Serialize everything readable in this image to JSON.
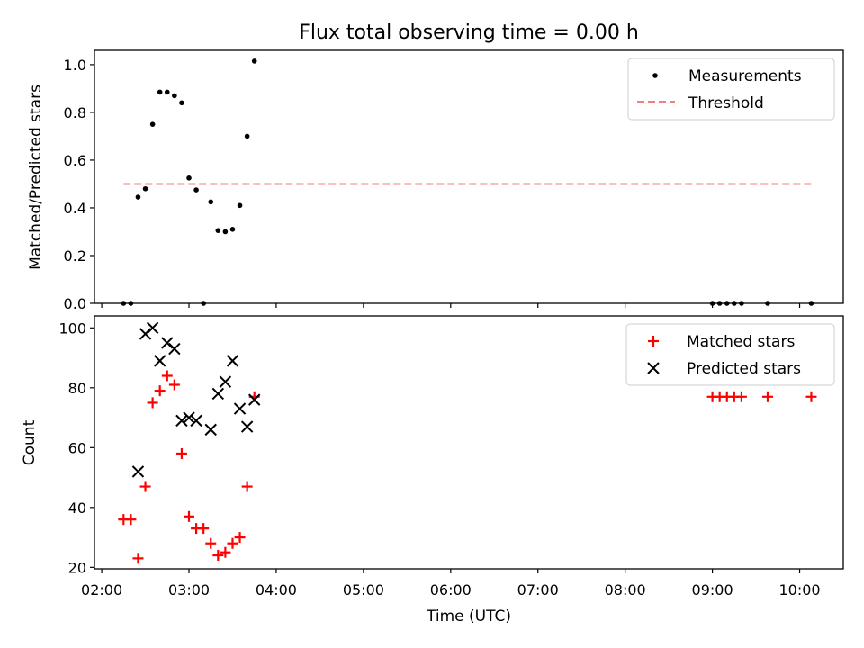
{
  "chart_data": [
    {
      "type": "scatter",
      "title": "Flux total observing time = 0.00 h",
      "xlabel": "",
      "ylabel": "Matched/Predicted stars",
      "ylim": [
        0,
        1.06
      ],
      "yticks": [
        "0.0",
        "0.2",
        "0.4",
        "0.6",
        "0.8",
        "1.0"
      ],
      "xlim": [
        "01:55",
        "10:30"
      ],
      "legend": "top-right",
      "series": [
        {
          "name": "Measurements",
          "marker": "dot",
          "color": "#000000",
          "points": [
            [
              "02:15",
              0.0
            ],
            [
              "02:20",
              0.0
            ],
            [
              "02:25",
              0.445
            ],
            [
              "02:30",
              0.48
            ],
            [
              "02:35",
              0.75
            ],
            [
              "02:40",
              0.885
            ],
            [
              "02:45",
              0.885
            ],
            [
              "02:50",
              0.87
            ],
            [
              "02:55",
              0.84
            ],
            [
              "03:00",
              0.525
            ],
            [
              "03:05",
              0.475
            ],
            [
              "03:10",
              0.0
            ],
            [
              "03:15",
              0.425
            ],
            [
              "03:20",
              0.305
            ],
            [
              "03:25",
              0.3
            ],
            [
              "03:30",
              0.31
            ],
            [
              "03:35",
              0.41
            ],
            [
              "03:40",
              0.7
            ],
            [
              "03:45",
              1.015
            ],
            [
              "09:00",
              0.0
            ],
            [
              "09:05",
              0.0
            ],
            [
              "09:10",
              0.0
            ],
            [
              "09:15",
              0.0
            ],
            [
              "09:20",
              0.0
            ],
            [
              "09:38",
              0.0
            ],
            [
              "10:08",
              0.0
            ]
          ]
        },
        {
          "name": "Threshold",
          "type": "line",
          "style": "dashed",
          "color": "#f08080",
          "points": [
            [
              "02:15",
              0.5
            ],
            [
              "10:08",
              0.5
            ]
          ]
        }
      ]
    },
    {
      "type": "scatter",
      "title": "",
      "xlabel": "Time (UTC)",
      "ylabel": "Count",
      "ylim": [
        19.5,
        104
      ],
      "yticks": [
        "20",
        "40",
        "60",
        "80",
        "100"
      ],
      "xlim": [
        "01:55",
        "10:30"
      ],
      "xticks": [
        "02:00",
        "03:00",
        "04:00",
        "05:00",
        "06:00",
        "07:00",
        "08:00",
        "09:00",
        "10:00"
      ],
      "legend": "top-right",
      "series": [
        {
          "name": "Matched stars",
          "marker": "plus",
          "color": "#ff0000",
          "points": [
            [
              "02:15",
              36
            ],
            [
              "02:20",
              36
            ],
            [
              "02:25",
              23
            ],
            [
              "02:30",
              47
            ],
            [
              "02:35",
              75
            ],
            [
              "02:40",
              79
            ],
            [
              "02:45",
              84
            ],
            [
              "02:50",
              81
            ],
            [
              "02:55",
              58
            ],
            [
              "03:00",
              37
            ],
            [
              "03:05",
              33
            ],
            [
              "03:10",
              33
            ],
            [
              "03:15",
              28
            ],
            [
              "03:20",
              24
            ],
            [
              "03:25",
              25
            ],
            [
              "03:30",
              28
            ],
            [
              "03:35",
              30
            ],
            [
              "03:40",
              47
            ],
            [
              "03:45",
              77
            ],
            [
              "09:00",
              77
            ],
            [
              "09:05",
              77
            ],
            [
              "09:10",
              77
            ],
            [
              "09:15",
              77
            ],
            [
              "09:20",
              77
            ],
            [
              "09:38",
              77
            ],
            [
              "10:08",
              77
            ]
          ]
        },
        {
          "name": "Predicted stars",
          "marker": "x",
          "color": "#000000",
          "points": [
            [
              "02:25",
              52
            ],
            [
              "02:30",
              98
            ],
            [
              "02:35",
              100
            ],
            [
              "02:40",
              89
            ],
            [
              "02:45",
              95
            ],
            [
              "02:50",
              93
            ],
            [
              "02:55",
              69
            ],
            [
              "03:00",
              70
            ],
            [
              "03:05",
              69
            ],
            [
              "03:15",
              66
            ],
            [
              "03:20",
              78
            ],
            [
              "03:25",
              82
            ],
            [
              "03:30",
              89
            ],
            [
              "03:35",
              73
            ],
            [
              "03:40",
              67
            ],
            [
              "03:45",
              76
            ]
          ]
        }
      ]
    }
  ]
}
